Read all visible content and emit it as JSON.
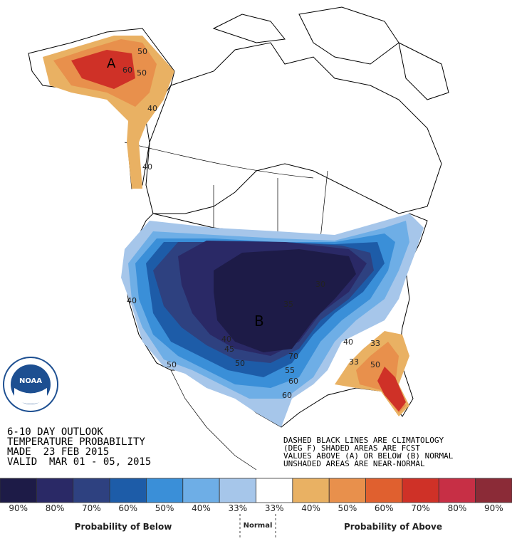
{
  "header": {
    "lines": [
      "6-10 DAY OUTLOOK",
      "TEMPERATURE PROBABILITY",
      "MADE  23 FEB 2015",
      "VALID  MAR 01 - 05, 2015"
    ]
  },
  "notes": [
    "DASHED BLACK LINES ARE CLIMATOLOGY",
    "(DEG F) SHADED AREAS ARE FCST",
    "VALUES ABOVE (A) OR BELOW (B) NORMAL",
    "UNSHADED AREAS ARE NEAR-NORMAL"
  ],
  "logo": "NOAA",
  "map_labels": {
    "above": "A",
    "below": "B",
    "contours": [
      "50",
      "60",
      "50",
      "40",
      "40",
      "40",
      "50",
      "45",
      "50",
      "40",
      "35",
      "30",
      "70",
      "60",
      "55",
      "60",
      "33",
      "40",
      "50",
      "33"
    ]
  },
  "legend": {
    "items": [
      {
        "label": "90%",
        "color": "#1d1b47"
      },
      {
        "label": "80%",
        "color": "#2a2966"
      },
      {
        "label": "70%",
        "color": "#2e4180"
      },
      {
        "label": "60%",
        "color": "#1d5ca8"
      },
      {
        "label": "50%",
        "color": "#3a8fd8"
      },
      {
        "label": "40%",
        "color": "#6eaee6"
      },
      {
        "label": "33%",
        "color": "#a6c6ea"
      },
      {
        "label": "33%",
        "color": "#ffffff"
      },
      {
        "label": "40%",
        "color": "#e9b163"
      },
      {
        "label": "50%",
        "color": "#e8904c"
      },
      {
        "label": "60%",
        "color": "#e0602f"
      },
      {
        "label": "70%",
        "color": "#cf3127"
      },
      {
        "label": "80%",
        "color": "#c72f45"
      },
      {
        "label": "90%",
        "color": "#8b2b37"
      }
    ],
    "below_title": "Probability of Below",
    "normal_title": "Normal",
    "above_title": "Probability of Above"
  }
}
